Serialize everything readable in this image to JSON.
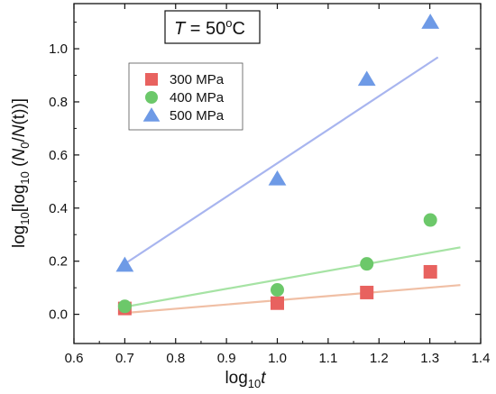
{
  "chart_data": {
    "type": "scatter",
    "xlabel": {
      "base": "log",
      "sub": "10",
      "var": "t"
    },
    "ylabel": {
      "p1": "log",
      "s1": "10",
      "p2": "[log",
      "s2": "10",
      "p3": " (",
      "n0": "N",
      "n0sub": "0",
      "slash": "/",
      "nt": "N",
      "nt_rest": "(t",
      "p4": "))]"
    },
    "annotation": {
      "var": "T",
      "eq": " = 50",
      "sup": "o",
      "unit": "C"
    },
    "xlim": [
      0.6,
      1.4
    ],
    "ylim": [
      -0.11,
      1.17
    ],
    "xticks": [
      0.6,
      0.7,
      0.8,
      0.9,
      1.0,
      1.1,
      1.2,
      1.3,
      1.4
    ],
    "yticks": [
      0.0,
      0.2,
      0.4,
      0.6,
      0.8,
      1.0
    ],
    "xtick_labels": [
      "0.6",
      "0.7",
      "0.8",
      "0.9",
      "1.0",
      "1.1",
      "1.2",
      "1.3",
      "1.4"
    ],
    "ytick_labels": [
      "0.0",
      "0.2",
      "0.4",
      "0.6",
      "0.8",
      "1.0"
    ],
    "legend_position": "upper-left",
    "grid": false,
    "series": [
      {
        "name": "300 MPa",
        "marker": "square",
        "color": "#e8625f",
        "fit_color": "#f0bfa5",
        "x": [
          0.7,
          1.0,
          1.176,
          1.301
        ],
        "y": [
          0.022,
          0.042,
          0.082,
          0.16
        ],
        "fit": [
          [
            0.7,
            0.005
          ],
          [
            1.36,
            0.11
          ]
        ]
      },
      {
        "name": "400 MPa",
        "marker": "circle",
        "color": "#6cc86a",
        "fit_color": "#a6e3a4",
        "x": [
          0.7,
          1.0,
          1.176,
          1.301
        ],
        "y": [
          0.03,
          0.092,
          0.19,
          0.355
        ],
        "fit": [
          [
            0.7,
            0.028
          ],
          [
            1.36,
            0.252
          ]
        ]
      },
      {
        "name": "500 MPa",
        "marker": "triangle",
        "color": "#6e9ae6",
        "fit_color": "#a8b5ef",
        "x": [
          0.7,
          1.0,
          1.176,
          1.301
        ],
        "y": [
          0.185,
          0.51,
          0.885,
          1.1
        ],
        "fit": [
          [
            0.7,
            0.19
          ],
          [
            1.316,
            0.968
          ]
        ]
      }
    ]
  }
}
